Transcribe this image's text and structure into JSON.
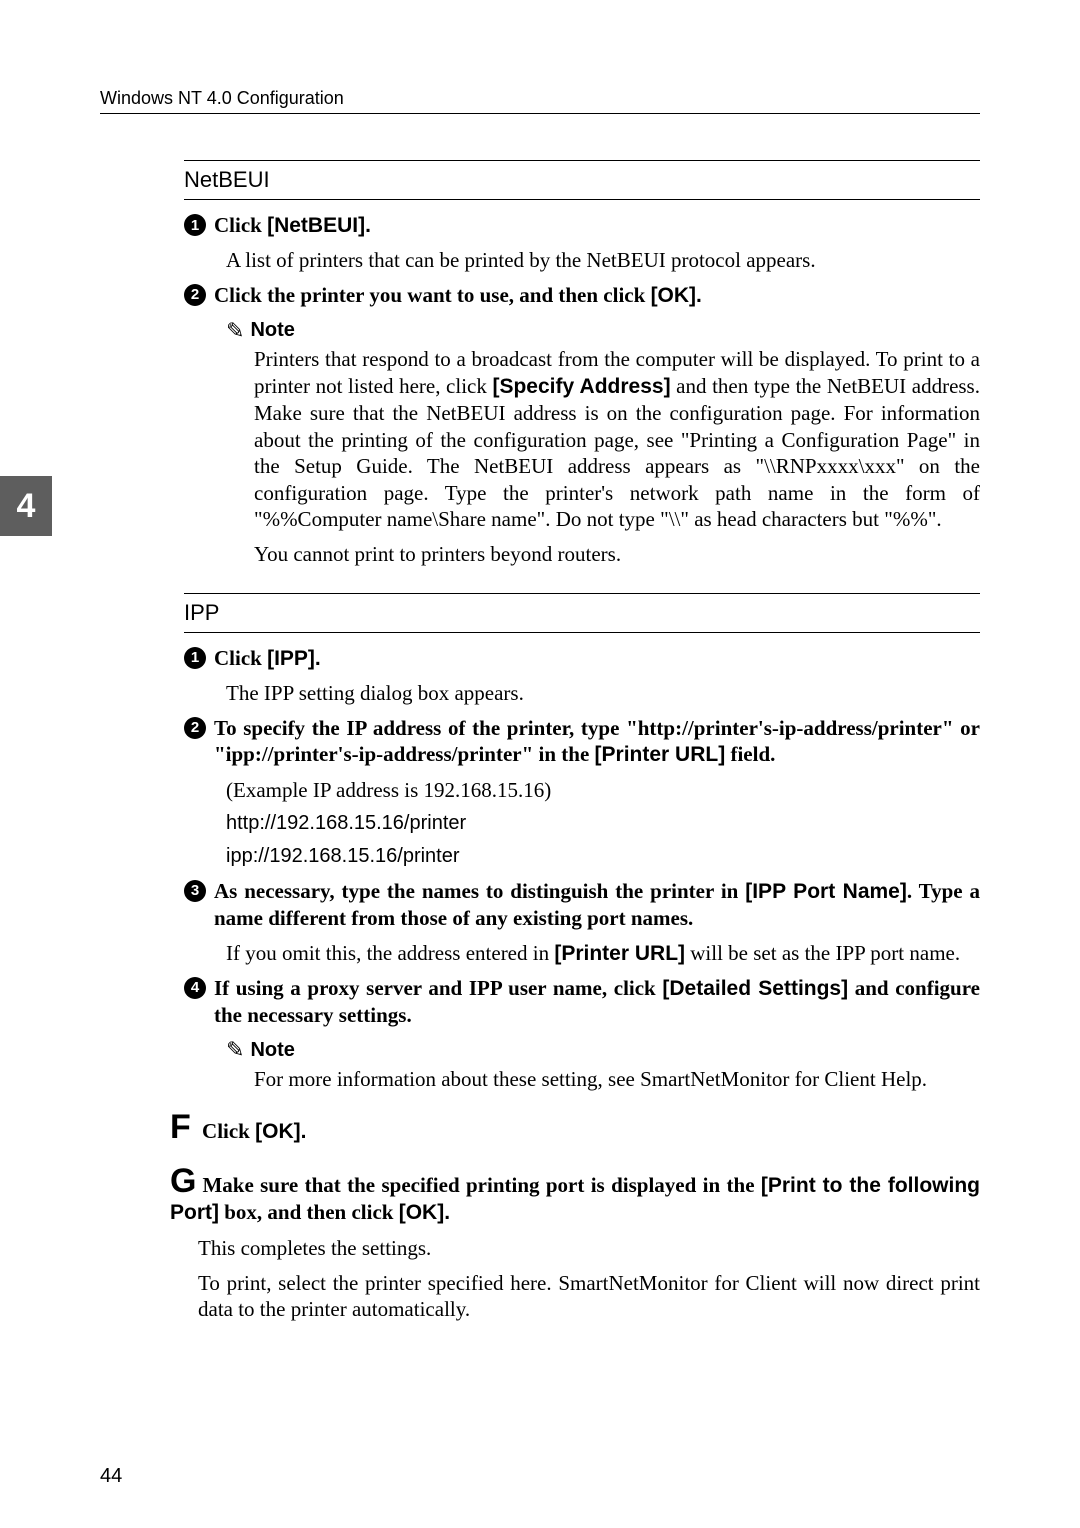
{
  "header": {
    "running": "Windows NT 4.0 Configuration"
  },
  "tab": {
    "number": "4"
  },
  "netbeui": {
    "title": "NetBEUI",
    "s1_a": "Click ",
    "s1_b": "[NetBEUI].",
    "s1_sub": "A list of printers that can be printed by the NetBEUI protocol appears.",
    "s2_a": "Click the printer you want to use, and then click ",
    "s2_b": "[OK].",
    "note_label": "Note",
    "note1_a": "Printers that respond to a broadcast from the computer will be displayed. To print to a printer not listed here, click ",
    "note1_b": "[Specify Address]",
    "note1_c": " and then type the NetBEUI address. Make sure that the NetBEUI address is on the configuration page. For information about the printing of the configuration page, see \"Printing a Configuration Page\" in the Setup Guide. The Net­BEUI address appears as \"\\\\RNPxxxx\\xxx\" on the configuration page. Type the printer's network path name in the form of \"%%Computer name\\Share name\". Do not type \"\\\\\" as head characters but \"%%\".",
    "note2": "You cannot print to printers beyond routers."
  },
  "ipp": {
    "title": "IPP",
    "s1_a": "Click ",
    "s1_b": "[IPP].",
    "s1_sub": "The IPP setting dialog box appears.",
    "s2_a": "To specify the IP address of the printer, type \"http://printer's-ip-ad­dress/printer\" or \"ipp://printer's-ip-address/printer\" in the ",
    "s2_b": "[Printer URL]",
    "s2_c": " field.",
    "s2_sub1": "(Example IP address is 192.168.15.16)",
    "s2_sub2": "http://192.168.15.16/printer",
    "s2_sub3": "ipp://192.168.15.16/printer",
    "s3_a": "As necessary, type the names to distinguish the printer in ",
    "s3_b": "[IPP Port Name]",
    "s3_c": ". Type a name different from those of any existing port names.",
    "s3_sub_a": "If you omit this, the address entered in ",
    "s3_sub_b": "[Printer URL]",
    "s3_sub_c": " will be set as the IPP port name.",
    "s4_a": "If using a proxy server and IPP user name, click ",
    "s4_b": "[Detailed Settings]",
    "s4_c": " and configure the necessary settings.",
    "note_label": "Note",
    "note1": "For more information about these setting, see SmartNetMonitor for Cli­ent Help."
  },
  "upper": {
    "F_letter": "F",
    "F_a": "Click ",
    "F_b": "[OK].",
    "G_letter": "G",
    "G_a": "Make sure that the specified printing port is displayed in the ",
    "G_b": "[Print to the fol­lowing Port]",
    "G_c": " box, and then click ",
    "G_d": "[OK].",
    "tail1": "This completes the settings.",
    "tail2": "To print, select the printer specified here. SmartNetMonitor for Client will now direct print data to the printer automatically."
  },
  "page_number": "44"
}
